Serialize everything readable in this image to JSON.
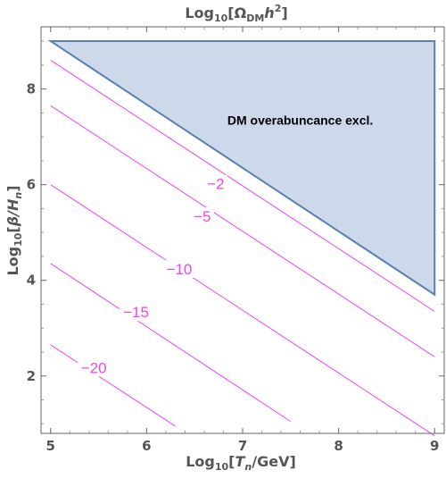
{
  "chart_data": {
    "type": "contour",
    "title": "Log₁₀[ΩDMh²]",
    "title_parts": {
      "prefix": "Log",
      "sub": "10",
      "open": "[Ω",
      "dm": "DM",
      "h": "h",
      "sup": "2",
      "close": "]"
    },
    "xlabel_parts": {
      "prefix": "Log",
      "sub": "10",
      "open": "[",
      "t": "T",
      "tsub": "n",
      "rest": "/GeV]"
    },
    "ylabel_parts": {
      "prefix": "Log",
      "sub": "10",
      "open": "[",
      "beta": "β/",
      "h": "H",
      "hsub": "n",
      "close": "]"
    },
    "xlim": [
      4.9,
      9.1
    ],
    "ylim": [
      0.8,
      9.3
    ],
    "x_ticks": [
      5,
      6,
      7,
      8,
      9
    ],
    "y_ticks": [
      2,
      4,
      6,
      8
    ],
    "contour_color": "#ee44ee",
    "contours": [
      {
        "level": "-2",
        "label_at": [
          6.72,
          5.98
        ]
      },
      {
        "level": "-5",
        "label_at": [
          6.58,
          5.3
        ]
      },
      {
        "level": "-10",
        "label_at": [
          6.34,
          4.2
        ]
      },
      {
        "level": "-15",
        "label_at": [
          5.89,
          3.3
        ]
      },
      {
        "level": "-20",
        "label_at": [
          5.45,
          2.14
        ]
      }
    ],
    "contour_lines": [
      {
        "level": "-2",
        "points": [
          [
            5.0,
            8.6
          ],
          [
            9.0,
            3.35
          ]
        ]
      },
      {
        "level": "-5",
        "points": [
          [
            5.0,
            7.65
          ],
          [
            9.0,
            2.4
          ]
        ]
      },
      {
        "level": "-10",
        "points": [
          [
            5.0,
            6.0
          ],
          [
            9.0,
            0.75
          ]
        ]
      },
      {
        "level": "-15",
        "points": [
          [
            5.0,
            4.35
          ],
          [
            7.5,
            1.05
          ]
        ]
      },
      {
        "level": "-20",
        "points": [
          [
            5.0,
            2.65
          ],
          [
            6.3,
            0.95
          ]
        ]
      }
    ],
    "excluded_region": {
      "label": "DM overabuncance excl.",
      "label_at": [
        7.6,
        7.25
      ],
      "vertices": [
        [
          5.0,
          9.0
        ],
        [
          9.0,
          9.0
        ],
        [
          9.0,
          3.7
        ]
      ],
      "fill": "#cdd8ea",
      "stroke": "#5a7fb0"
    },
    "grid": false
  }
}
